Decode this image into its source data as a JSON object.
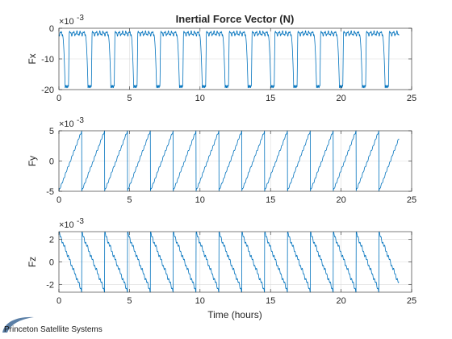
{
  "title": "Inertial Force Vector (N)",
  "xlabel": "Time (hours)",
  "logo_text": "Princeton Satellite Systems",
  "colors": {
    "line": "#0072bd",
    "grid": "#dcdcdc",
    "axes": "#262626",
    "logo_swoosh": "#5b7fa6"
  },
  "chart_data": [
    {
      "type": "line",
      "ylabel": "Fx",
      "y_exponent_label": "×10",
      "y_exponent": "-3",
      "xlim": [
        0,
        25
      ],
      "ylim": [
        -20,
        0
      ],
      "xticks": [
        0,
        5,
        10,
        15,
        20,
        25
      ],
      "yticks": [
        -20,
        -10,
        0
      ],
      "grid": true,
      "period_hours": 1.62,
      "t_end": 24.1,
      "series": [
        {
          "shape": "fx_pulse",
          "values_range": [
            -19,
            -0.5
          ]
        }
      ]
    },
    {
      "type": "line",
      "ylabel": "Fy",
      "y_exponent_label": "×10",
      "y_exponent": "-3",
      "xlim": [
        0,
        25
      ],
      "ylim": [
        -5,
        5
      ],
      "xticks": [
        0,
        5,
        10,
        15,
        20,
        25
      ],
      "yticks": [
        -5,
        0,
        5
      ],
      "grid": true,
      "period_hours": 1.62,
      "t_end": 24.1,
      "series": [
        {
          "shape": "saw_rising",
          "values_range": [
            -5,
            5
          ]
        }
      ]
    },
    {
      "type": "line",
      "ylabel": "Fz",
      "y_exponent_label": "×10",
      "y_exponent": "-3",
      "xlim": [
        0,
        25
      ],
      "ylim": [
        -2.7,
        2.7
      ],
      "xticks": [
        0,
        5,
        10,
        15,
        20,
        25
      ],
      "yticks": [
        -2,
        0,
        2
      ],
      "grid": true,
      "period_hours": 1.62,
      "t_end": 24.1,
      "series": [
        {
          "shape": "saw_falling",
          "values_range": [
            -2.6,
            2.6
          ]
        }
      ]
    }
  ]
}
